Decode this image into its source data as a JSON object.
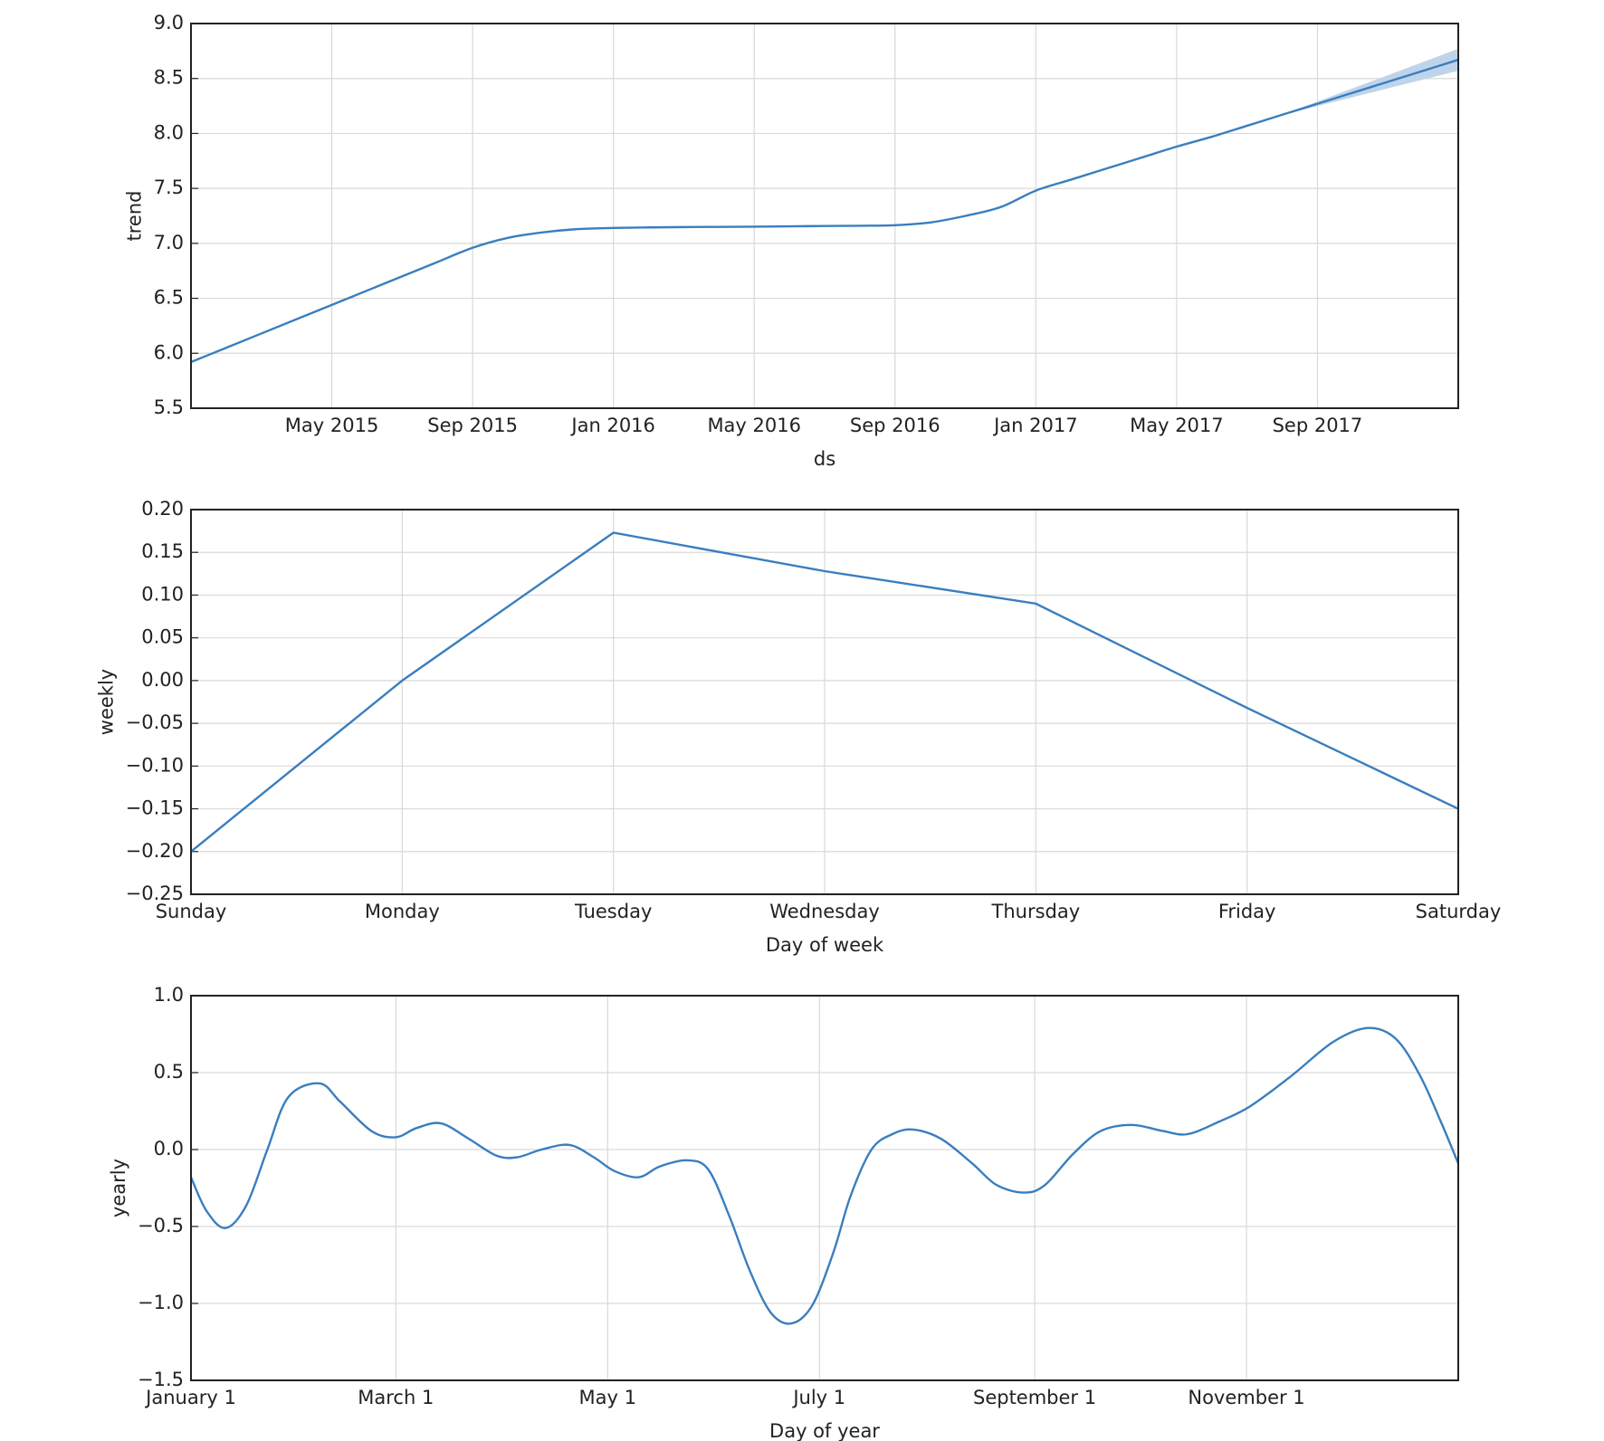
{
  "chart_data": [
    {
      "type": "line",
      "xlabel": "ds",
      "ylabel": "trend",
      "grid": true,
      "x": [
        "2015-01",
        "2015-02",
        "2015-03",
        "2015-04",
        "2015-05",
        "2015-06",
        "2015-07",
        "2015-08",
        "2015-09",
        "2015-10",
        "2015-11",
        "2015-12",
        "2016-01",
        "2016-02",
        "2016-03",
        "2016-04",
        "2016-05",
        "2016-06",
        "2016-07",
        "2016-08",
        "2016-09",
        "2016-10",
        "2016-11",
        "2016-12",
        "2017-01",
        "2017-02",
        "2017-03",
        "2017-04",
        "2017-05",
        "2017-06",
        "2017-07",
        "2017-08",
        "2017-09",
        "2017-10",
        "2017-11",
        "2017-12",
        "2018-01"
      ],
      "series": [
        {
          "color": "#3a7ebf",
          "band_color": "#bfd4ea",
          "values": [
            5.92,
            6.05,
            6.18,
            6.31,
            6.44,
            6.57,
            6.7,
            6.83,
            6.96,
            7.05,
            7.1,
            7.13,
            7.14,
            7.145,
            7.148,
            7.15,
            7.152,
            7.155,
            7.158,
            7.16,
            7.165,
            7.19,
            7.25,
            7.33,
            7.48,
            7.58,
            7.68,
            7.78,
            7.88,
            7.97,
            8.07,
            8.17,
            8.27,
            8.37,
            8.47,
            8.57,
            8.67
          ],
          "lower": [
            5.92,
            6.05,
            6.18,
            6.31,
            6.44,
            6.57,
            6.7,
            6.83,
            6.96,
            7.05,
            7.1,
            7.13,
            7.14,
            7.145,
            7.148,
            7.15,
            7.152,
            7.155,
            7.158,
            7.16,
            7.165,
            7.19,
            7.25,
            7.33,
            7.48,
            7.58,
            7.68,
            7.78,
            7.88,
            7.97,
            8.07,
            8.165,
            8.25,
            8.33,
            8.41,
            8.49,
            8.57
          ],
          "upper": [
            5.92,
            6.05,
            6.18,
            6.31,
            6.44,
            6.57,
            6.7,
            6.83,
            6.96,
            7.05,
            7.1,
            7.13,
            7.14,
            7.145,
            7.148,
            7.15,
            7.152,
            7.155,
            7.158,
            7.16,
            7.165,
            7.19,
            7.25,
            7.33,
            7.48,
            7.58,
            7.68,
            7.78,
            7.88,
            7.97,
            8.07,
            8.175,
            8.29,
            8.41,
            8.53,
            8.65,
            8.77
          ]
        }
      ],
      "xlim": [
        "2015-01",
        "2018-01"
      ],
      "xticks": [
        {
          "value": "2015-05",
          "label": "May 2015"
        },
        {
          "value": "2015-09",
          "label": "Sep 2015"
        },
        {
          "value": "2016-01",
          "label": "Jan 2016"
        },
        {
          "value": "2016-05",
          "label": "May 2016"
        },
        {
          "value": "2016-09",
          "label": "Sep 2016"
        },
        {
          "value": "2017-01",
          "label": "Jan 2017"
        },
        {
          "value": "2017-05",
          "label": "May 2017"
        },
        {
          "value": "2017-09",
          "label": "Sep 2017"
        }
      ],
      "ylim": [
        5.5,
        9.0
      ],
      "yticks": [
        {
          "value": 5.5,
          "label": "5.5"
        },
        {
          "value": 6.0,
          "label": "6.0"
        },
        {
          "value": 6.5,
          "label": "6.5"
        },
        {
          "value": 7.0,
          "label": "7.0"
        },
        {
          "value": 7.5,
          "label": "7.5"
        },
        {
          "value": 8.0,
          "label": "8.0"
        },
        {
          "value": 8.5,
          "label": "8.5"
        },
        {
          "value": 9.0,
          "label": "9.0"
        }
      ]
    },
    {
      "type": "line",
      "xlabel": "Day of week",
      "ylabel": "weekly",
      "grid": true,
      "categories": [
        "Sunday",
        "Monday",
        "Tuesday",
        "Wednesday",
        "Thursday",
        "Friday",
        "Saturday"
      ],
      "series": [
        {
          "color": "#3a7ebf",
          "values": [
            -0.2,
            0.0,
            0.173,
            0.128,
            0.09,
            -0.032,
            -0.15
          ]
        }
      ],
      "ylim": [
        -0.25,
        0.2
      ],
      "yticks": [
        {
          "value": -0.25,
          "label": "−0.25"
        },
        {
          "value": -0.2,
          "label": "−0.20"
        },
        {
          "value": -0.15,
          "label": "−0.15"
        },
        {
          "value": -0.1,
          "label": "−0.10"
        },
        {
          "value": -0.05,
          "label": "−0.05"
        },
        {
          "value": 0,
          "label": "0.00"
        },
        {
          "value": 0.05,
          "label": "0.05"
        },
        {
          "value": 0.1,
          "label": "0.10"
        },
        {
          "value": 0.15,
          "label": "0.15"
        },
        {
          "value": 0.2,
          "label": "0.20"
        }
      ]
    },
    {
      "type": "line",
      "xlabel": "Day of year",
      "ylabel": "yearly",
      "grid": true,
      "x": [
        0,
        4.5,
        10,
        16,
        22,
        28,
        37,
        43,
        52,
        59,
        65,
        72,
        80,
        88,
        94,
        101,
        109,
        116,
        122,
        129,
        135,
        143,
        149,
        155,
        161,
        167,
        173,
        179,
        185,
        190,
        196,
        202,
        208,
        216,
        225,
        232,
        240,
        246,
        254,
        262,
        271,
        280,
        287,
        296,
        305,
        317,
        329,
        339,
        347,
        354,
        360,
        365
      ],
      "series": [
        {
          "color": "#3a7ebf",
          "values": [
            -0.18,
            -0.4,
            -0.51,
            -0.36,
            0.0,
            0.34,
            0.43,
            0.31,
            0.12,
            0.08,
            0.14,
            0.17,
            0.07,
            -0.04,
            -0.05,
            0.0,
            0.03,
            -0.05,
            -0.14,
            -0.18,
            -0.11,
            -0.07,
            -0.13,
            -0.43,
            -0.79,
            -1.06,
            -1.13,
            -1.01,
            -0.67,
            -0.3,
            0.0,
            0.1,
            0.13,
            0.07,
            -0.09,
            -0.23,
            -0.28,
            -0.23,
            -0.03,
            0.12,
            0.16,
            0.12,
            0.1,
            0.18,
            0.28,
            0.48,
            0.7,
            0.79,
            0.72,
            0.48,
            0.18,
            -0.09
          ]
        }
      ],
      "xlim": [
        0,
        365
      ],
      "xticks": [
        {
          "value": 0,
          "label": "January 1"
        },
        {
          "value": 59,
          "label": "March 1"
        },
        {
          "value": 120,
          "label": "May 1"
        },
        {
          "value": 181,
          "label": "July 1"
        },
        {
          "value": 243,
          "label": "September 1"
        },
        {
          "value": 304,
          "label": "November 1"
        }
      ],
      "ylim": [
        -1.5,
        1.0
      ],
      "yticks": [
        {
          "value": -1.5,
          "label": "−1.5"
        },
        {
          "value": -1.0,
          "label": "−1.0"
        },
        {
          "value": -0.5,
          "label": "−0.5"
        },
        {
          "value": 0.0,
          "label": "0.0"
        },
        {
          "value": 0.5,
          "label": "0.5"
        },
        {
          "value": 1.0,
          "label": "1.0"
        }
      ]
    }
  ]
}
